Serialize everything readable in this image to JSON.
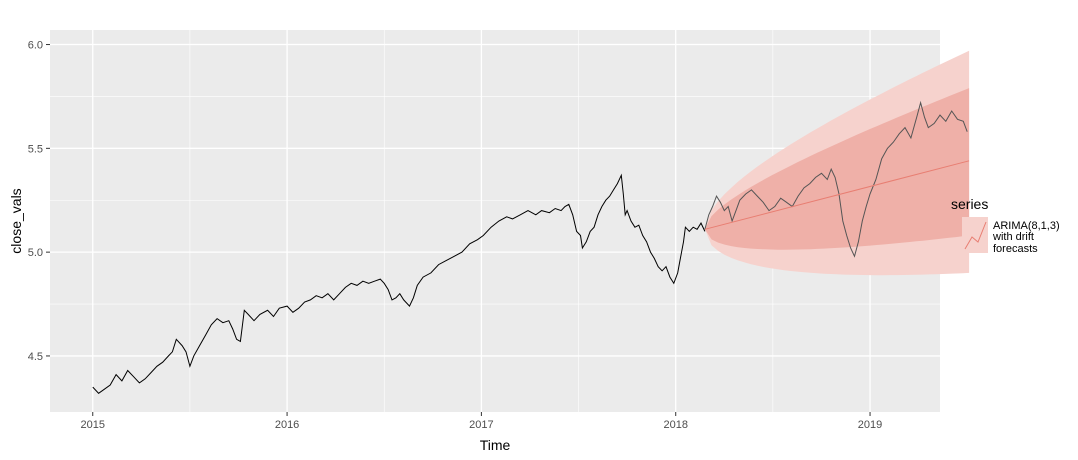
{
  "chart_data": {
    "type": "line",
    "title": "",
    "xlabel": "Time",
    "ylabel": "close_vals",
    "xlim": [
      2014.78,
      2019.36
    ],
    "ylim": [
      4.23,
      6.07
    ],
    "x_ticks": [
      2015,
      2016,
      2017,
      2018,
      2019
    ],
    "x_tick_labels": [
      "2015",
      "2016",
      "2017",
      "2018",
      "2019"
    ],
    "y_ticks": [
      4.5,
      5.0,
      5.5,
      6.0
    ],
    "y_tick_labels": [
      "4.5",
      "5.0",
      "5.5",
      "6.0"
    ],
    "grid": true,
    "legend": {
      "position": "right",
      "title": "series",
      "entries": [
        "ARIMA(8,1,3)",
        "with drift",
        "forecasts"
      ]
    },
    "colors": {
      "panel": "#EBEBEB",
      "grid": "#FFFFFF",
      "history_line": "#000000",
      "actual_line": "#555555",
      "forecast_line": "#E87E72",
      "band_95": "#F6D2CD",
      "band_80": "#EFB0A8"
    },
    "series": [
      {
        "role": "history",
        "points": [
          [
            2015.0,
            4.35
          ],
          [
            2015.03,
            4.32
          ],
          [
            2015.06,
            4.34
          ],
          [
            2015.09,
            4.36
          ],
          [
            2015.12,
            4.41
          ],
          [
            2015.15,
            4.38
          ],
          [
            2015.18,
            4.43
          ],
          [
            2015.21,
            4.4
          ],
          [
            2015.24,
            4.37
          ],
          [
            2015.27,
            4.39
          ],
          [
            2015.3,
            4.42
          ],
          [
            2015.33,
            4.45
          ],
          [
            2015.36,
            4.47
          ],
          [
            2015.39,
            4.5
          ],
          [
            2015.41,
            4.52
          ],
          [
            2015.43,
            4.58
          ],
          [
            2015.46,
            4.55
          ],
          [
            2015.48,
            4.52
          ],
          [
            2015.5,
            4.45
          ],
          [
            2015.52,
            4.5
          ],
          [
            2015.55,
            4.55
          ],
          [
            2015.58,
            4.6
          ],
          [
            2015.61,
            4.65
          ],
          [
            2015.64,
            4.68
          ],
          [
            2015.67,
            4.66
          ],
          [
            2015.7,
            4.67
          ],
          [
            2015.72,
            4.63
          ],
          [
            2015.74,
            4.58
          ],
          [
            2015.76,
            4.57
          ],
          [
            2015.78,
            4.72
          ],
          [
            2015.8,
            4.7
          ],
          [
            2015.83,
            4.67
          ],
          [
            2015.86,
            4.7
          ],
          [
            2015.9,
            4.72
          ],
          [
            2015.93,
            4.69
          ],
          [
            2015.96,
            4.73
          ],
          [
            2016.0,
            4.74
          ],
          [
            2016.03,
            4.71
          ],
          [
            2016.06,
            4.73
          ],
          [
            2016.09,
            4.76
          ],
          [
            2016.12,
            4.77
          ],
          [
            2016.15,
            4.79
          ],
          [
            2016.18,
            4.78
          ],
          [
            2016.21,
            4.8
          ],
          [
            2016.24,
            4.77
          ],
          [
            2016.27,
            4.8
          ],
          [
            2016.3,
            4.83
          ],
          [
            2016.33,
            4.85
          ],
          [
            2016.36,
            4.84
          ],
          [
            2016.39,
            4.86
          ],
          [
            2016.42,
            4.85
          ],
          [
            2016.45,
            4.86
          ],
          [
            2016.48,
            4.87
          ],
          [
            2016.5,
            4.85
          ],
          [
            2016.52,
            4.82
          ],
          [
            2016.54,
            4.77
          ],
          [
            2016.56,
            4.78
          ],
          [
            2016.58,
            4.8
          ],
          [
            2016.6,
            4.77
          ],
          [
            2016.63,
            4.74
          ],
          [
            2016.65,
            4.78
          ],
          [
            2016.67,
            4.84
          ],
          [
            2016.7,
            4.88
          ],
          [
            2016.74,
            4.9
          ],
          [
            2016.78,
            4.94
          ],
          [
            2016.82,
            4.96
          ],
          [
            2016.86,
            4.98
          ],
          [
            2016.9,
            5.0
          ],
          [
            2016.94,
            5.04
          ],
          [
            2016.98,
            5.06
          ],
          [
            2017.01,
            5.08
          ],
          [
            2017.05,
            5.12
          ],
          [
            2017.09,
            5.15
          ],
          [
            2017.13,
            5.17
          ],
          [
            2017.16,
            5.16
          ],
          [
            2017.2,
            5.18
          ],
          [
            2017.24,
            5.2
          ],
          [
            2017.28,
            5.18
          ],
          [
            2017.31,
            5.2
          ],
          [
            2017.35,
            5.19
          ],
          [
            2017.38,
            5.21
          ],
          [
            2017.41,
            5.2
          ],
          [
            2017.43,
            5.22
          ],
          [
            2017.45,
            5.23
          ],
          [
            2017.47,
            5.18
          ],
          [
            2017.49,
            5.1
          ],
          [
            2017.51,
            5.08
          ],
          [
            2017.52,
            5.02
          ],
          [
            2017.54,
            5.05
          ],
          [
            2017.56,
            5.1
          ],
          [
            2017.58,
            5.12
          ],
          [
            2017.6,
            5.18
          ],
          [
            2017.62,
            5.22
          ],
          [
            2017.64,
            5.25
          ],
          [
            2017.66,
            5.27
          ],
          [
            2017.68,
            5.3
          ],
          [
            2017.7,
            5.33
          ],
          [
            2017.72,
            5.37
          ],
          [
            2017.73,
            5.28
          ],
          [
            2017.74,
            5.18
          ],
          [
            2017.75,
            5.2
          ],
          [
            2017.77,
            5.15
          ],
          [
            2017.79,
            5.12
          ],
          [
            2017.81,
            5.13
          ],
          [
            2017.83,
            5.08
          ],
          [
            2017.85,
            5.05
          ],
          [
            2017.87,
            5.0
          ],
          [
            2017.89,
            4.97
          ],
          [
            2017.91,
            4.93
          ],
          [
            2017.93,
            4.91
          ],
          [
            2017.95,
            4.93
          ],
          [
            2017.97,
            4.88
          ],
          [
            2017.99,
            4.85
          ],
          [
            2018.01,
            4.9
          ],
          [
            2018.02,
            4.95
          ],
          [
            2018.04,
            5.05
          ],
          [
            2018.05,
            5.12
          ],
          [
            2018.07,
            5.1
          ],
          [
            2018.09,
            5.12
          ],
          [
            2018.11,
            5.11
          ],
          [
            2018.13,
            5.14
          ],
          [
            2018.15,
            5.1
          ]
        ]
      },
      {
        "role": "actual",
        "points": [
          [
            2018.15,
            5.11
          ],
          [
            2018.17,
            5.18
          ],
          [
            2018.19,
            5.22
          ],
          [
            2018.21,
            5.27
          ],
          [
            2018.23,
            5.24
          ],
          [
            2018.25,
            5.2
          ],
          [
            2018.27,
            5.22
          ],
          [
            2018.29,
            5.15
          ],
          [
            2018.31,
            5.2
          ],
          [
            2018.33,
            5.25
          ],
          [
            2018.36,
            5.28
          ],
          [
            2018.39,
            5.3
          ],
          [
            2018.42,
            5.27
          ],
          [
            2018.45,
            5.24
          ],
          [
            2018.48,
            5.2
          ],
          [
            2018.51,
            5.22
          ],
          [
            2018.54,
            5.26
          ],
          [
            2018.57,
            5.24
          ],
          [
            2018.6,
            5.22
          ],
          [
            2018.63,
            5.27
          ],
          [
            2018.66,
            5.31
          ],
          [
            2018.69,
            5.33
          ],
          [
            2018.72,
            5.36
          ],
          [
            2018.75,
            5.38
          ],
          [
            2018.78,
            5.35
          ],
          [
            2018.8,
            5.4
          ],
          [
            2018.82,
            5.36
          ],
          [
            2018.84,
            5.28
          ],
          [
            2018.86,
            5.15
          ],
          [
            2018.88,
            5.08
          ],
          [
            2018.9,
            5.02
          ],
          [
            2018.92,
            4.98
          ],
          [
            2018.94,
            5.05
          ],
          [
            2018.96,
            5.15
          ],
          [
            2018.98,
            5.22
          ],
          [
            2019.0,
            5.28
          ],
          [
            2019.03,
            5.35
          ],
          [
            2019.06,
            5.45
          ],
          [
            2019.09,
            5.5
          ],
          [
            2019.12,
            5.53
          ],
          [
            2019.15,
            5.57
          ],
          [
            2019.18,
            5.6
          ],
          [
            2019.21,
            5.55
          ],
          [
            2019.24,
            5.65
          ],
          [
            2019.26,
            5.72
          ],
          [
            2019.28,
            5.65
          ],
          [
            2019.3,
            5.6
          ],
          [
            2019.33,
            5.62
          ],
          [
            2019.36,
            5.66
          ],
          [
            2019.39,
            5.63
          ],
          [
            2019.42,
            5.68
          ],
          [
            2019.45,
            5.64
          ],
          [
            2019.48,
            5.63
          ],
          [
            2019.5,
            5.58
          ]
        ]
      },
      {
        "role": "forecast",
        "x_range": [
          2018.15,
          2019.51
        ],
        "mean": [
          5.11,
          5.44
        ],
        "lo80_end": 5.08,
        "hi80_end": 5.79,
        "lo95_end": 4.9,
        "hi95_end": 5.97
      }
    ]
  }
}
